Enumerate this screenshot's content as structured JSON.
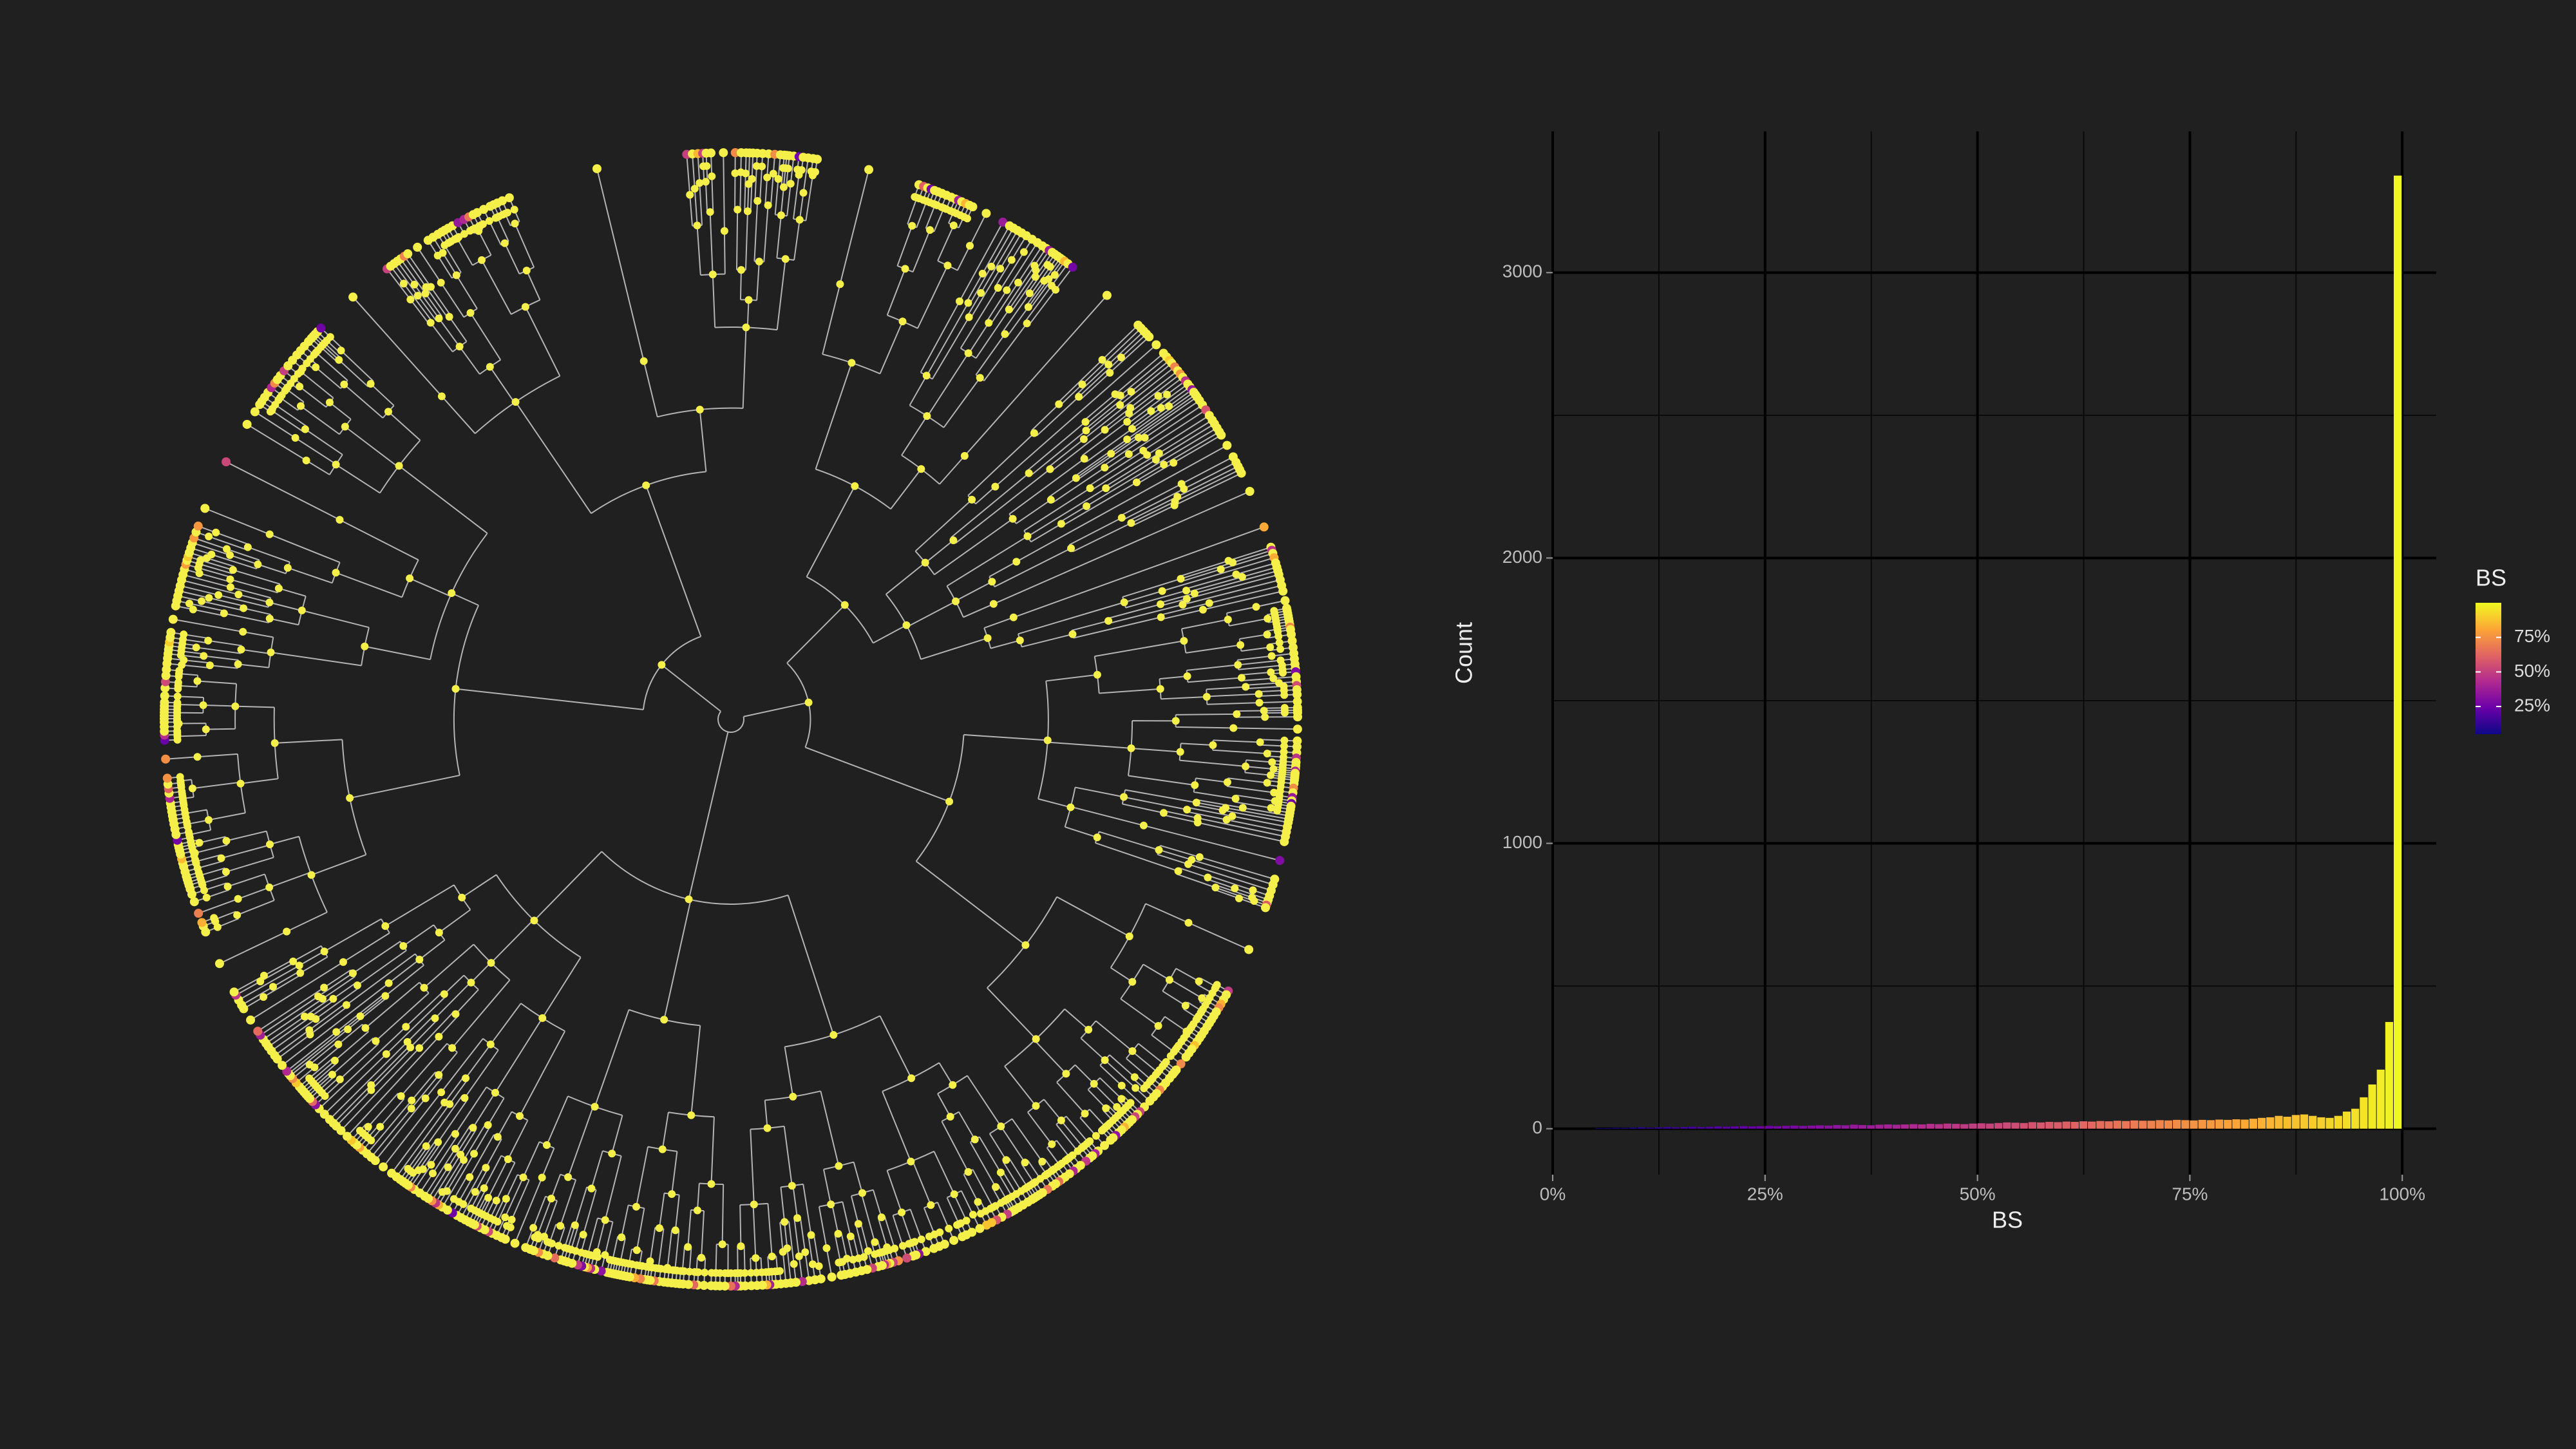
{
  "chart_data": {
    "type": "histogram",
    "x_label": "BS",
    "y_label": "Count",
    "legend_title": "BS",
    "bins": [
      5,
      6,
      7,
      8,
      9,
      10,
      11,
      12,
      13,
      14,
      15,
      16,
      17,
      18,
      19,
      20,
      21,
      22,
      23,
      24,
      25,
      26,
      27,
      28,
      29,
      30,
      31,
      32,
      33,
      34,
      35,
      36,
      37,
      38,
      39,
      40,
      41,
      42,
      43,
      44,
      45,
      46,
      47,
      48,
      49,
      50,
      51,
      52,
      53,
      54,
      55,
      56,
      57,
      58,
      59,
      60,
      61,
      62,
      63,
      64,
      65,
      66,
      67,
      68,
      69,
      70,
      71,
      72,
      73,
      74,
      75,
      76,
      77,
      78,
      79,
      80,
      81,
      82,
      83,
      84,
      85,
      86,
      87,
      88,
      89,
      90,
      91,
      92,
      93,
      94,
      95,
      96,
      97,
      98,
      99,
      100
    ],
    "values": [
      2,
      2,
      3,
      3,
      4,
      5,
      4,
      5,
      6,
      5,
      6,
      7,
      6,
      7,
      8,
      7,
      8,
      9,
      8,
      9,
      10,
      9,
      10,
      11,
      10,
      11,
      12,
      11,
      13,
      12,
      14,
      13,
      12,
      14,
      15,
      14,
      15,
      16,
      15,
      17,
      16,
      18,
      17,
      16,
      18,
      19,
      18,
      20,
      22,
      21,
      20,
      23,
      22,
      24,
      23,
      25,
      24,
      26,
      25,
      27,
      26,
      28,
      27,
      29,
      28,
      28,
      30,
      29,
      31,
      30,
      29,
      31,
      30,
      32,
      31,
      33,
      32,
      35,
      38,
      40,
      45,
      42,
      48,
      50,
      45,
      40,
      38,
      45,
      60,
      70,
      110,
      155,
      207,
      374,
      3340
    ],
    "xlim": [
      0,
      104
    ],
    "ylim": [
      -161,
      3495
    ],
    "xticks": [
      {
        "value": 0,
        "label": "0%"
      },
      {
        "value": 25,
        "label": "25%"
      },
      {
        "value": 50,
        "label": "50%"
      },
      {
        "value": 75,
        "label": "75%"
      },
      {
        "value": 100,
        "label": "100%"
      }
    ],
    "minor_xticks": [
      12.5,
      37.5,
      62.5,
      87.5
    ],
    "yticks": [
      0,
      1000,
      2000,
      3000
    ],
    "minor_yticks": [
      500,
      1500,
      2500
    ],
    "grid": true,
    "colormap": [
      "#0d0887",
      "#6a00a8",
      "#b12a90",
      "#e16462",
      "#fca636",
      "#f0f921"
    ],
    "color_limits": [
      5,
      100
    ],
    "legend_ticks": [
      {
        "value": 25,
        "label": "25%"
      },
      {
        "value": 50,
        "label": "50%"
      },
      {
        "value": 75,
        "label": "75%"
      }
    ]
  }
}
